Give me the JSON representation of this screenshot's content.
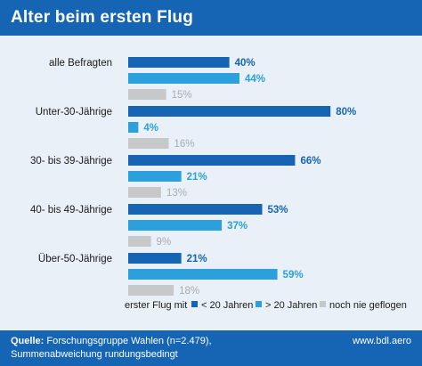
{
  "title": "Alter beim ersten Flug",
  "colors": {
    "header_bg": "#1565b4",
    "background": "#e9f0f7",
    "series_dark": "#1565b4",
    "series_light": "#2ba0dc",
    "series_gray": "#c7c8ca"
  },
  "chart_data": {
    "type": "bar",
    "orientation": "horizontal",
    "categories": [
      "alle Befragten",
      "Unter-30-Jährige",
      "30- bis 39-Jährige",
      "40- bis 49-Jährige",
      "Über-50-Jährige"
    ],
    "series": [
      {
        "name": "< 20 Jahren",
        "values": [
          40,
          80,
          66,
          53,
          21
        ],
        "labels": [
          "40%",
          "80%",
          "66%",
          "53%",
          "21%"
        ]
      },
      {
        "name": "> 20 Jahren",
        "values": [
          44,
          4,
          21,
          37,
          59
        ],
        "labels": [
          "44%",
          "4%",
          "21%",
          "37%",
          "59%"
        ]
      },
      {
        "name": "noch nie geflogen",
        "values": [
          15,
          16,
          13,
          9,
          18
        ],
        "labels": [
          "15%",
          "16%",
          "13%",
          "9%",
          "18%"
        ]
      }
    ],
    "xlim": [
      0,
      100
    ],
    "legend_title": "erster Flug mit",
    "legend_position": "bottom",
    "grid": false
  },
  "footer": {
    "source_label": "Quelle:",
    "source_text": "Forschungsgruppe Wahlen (n=2.479),",
    "source_line2": "Summenabweichung rundungsbedingt",
    "website": "www.bdl.aero"
  }
}
